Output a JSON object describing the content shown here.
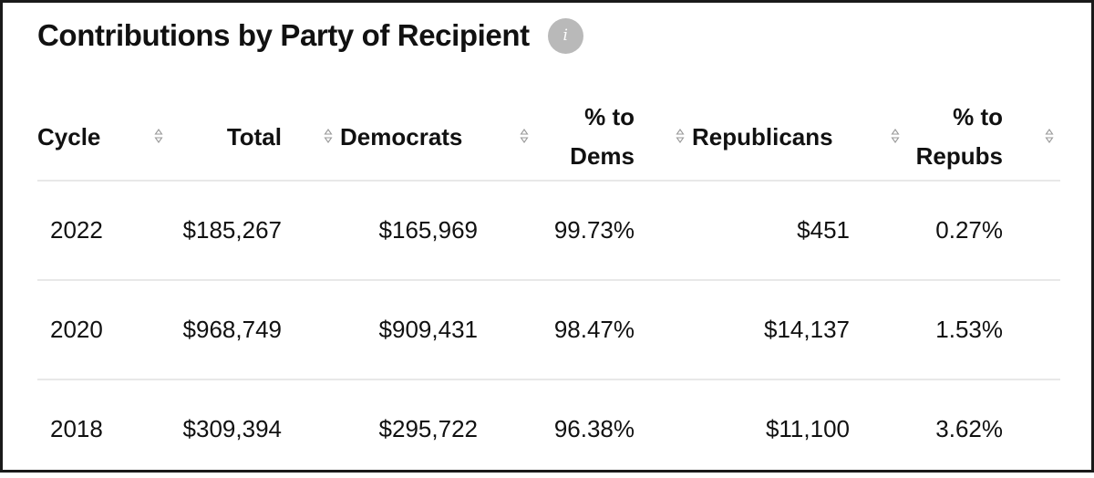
{
  "header": {
    "title": "Contributions by Party of Recipient",
    "info_icon_glyph": "i"
  },
  "table": {
    "columns": [
      {
        "label": "Cycle",
        "sort_icon": "sort-arrows-icon"
      },
      {
        "label": "Total",
        "sort_icon": "sort-arrows-icon"
      },
      {
        "label": "Democrats",
        "sort_icon": "sort-arrows-icon"
      },
      {
        "label_line1": "% to",
        "label_line2": "Dems",
        "sort_icon": "sort-arrows-icon"
      },
      {
        "label": "Republicans",
        "sort_icon": "sort-arrows-icon"
      },
      {
        "label_line1": "% to",
        "label_line2": "Repubs",
        "sort_icon": "sort-arrows-icon"
      }
    ],
    "rows": [
      {
        "cycle": "2022",
        "total": "$185,267",
        "democrats": "$165,969",
        "pct_dems": "99.73%",
        "republicans": "$451",
        "pct_repubs": "0.27%"
      },
      {
        "cycle": "2020",
        "total": "$968,749",
        "democrats": "$909,431",
        "pct_dems": "98.47%",
        "republicans": "$14,137",
        "pct_repubs": "1.53%"
      },
      {
        "cycle": "2018",
        "total": "$309,394",
        "democrats": "$295,722",
        "pct_dems": "96.38%",
        "republicans": "$11,100",
        "pct_repubs": "3.62%"
      }
    ]
  },
  "colors": {
    "text": "#111111",
    "info_icon_bg": "#b9b9b9",
    "row_divider": "#e8e8e8",
    "sort_icon": "#9a9a9a",
    "frame_border": "#1a1a1a"
  }
}
